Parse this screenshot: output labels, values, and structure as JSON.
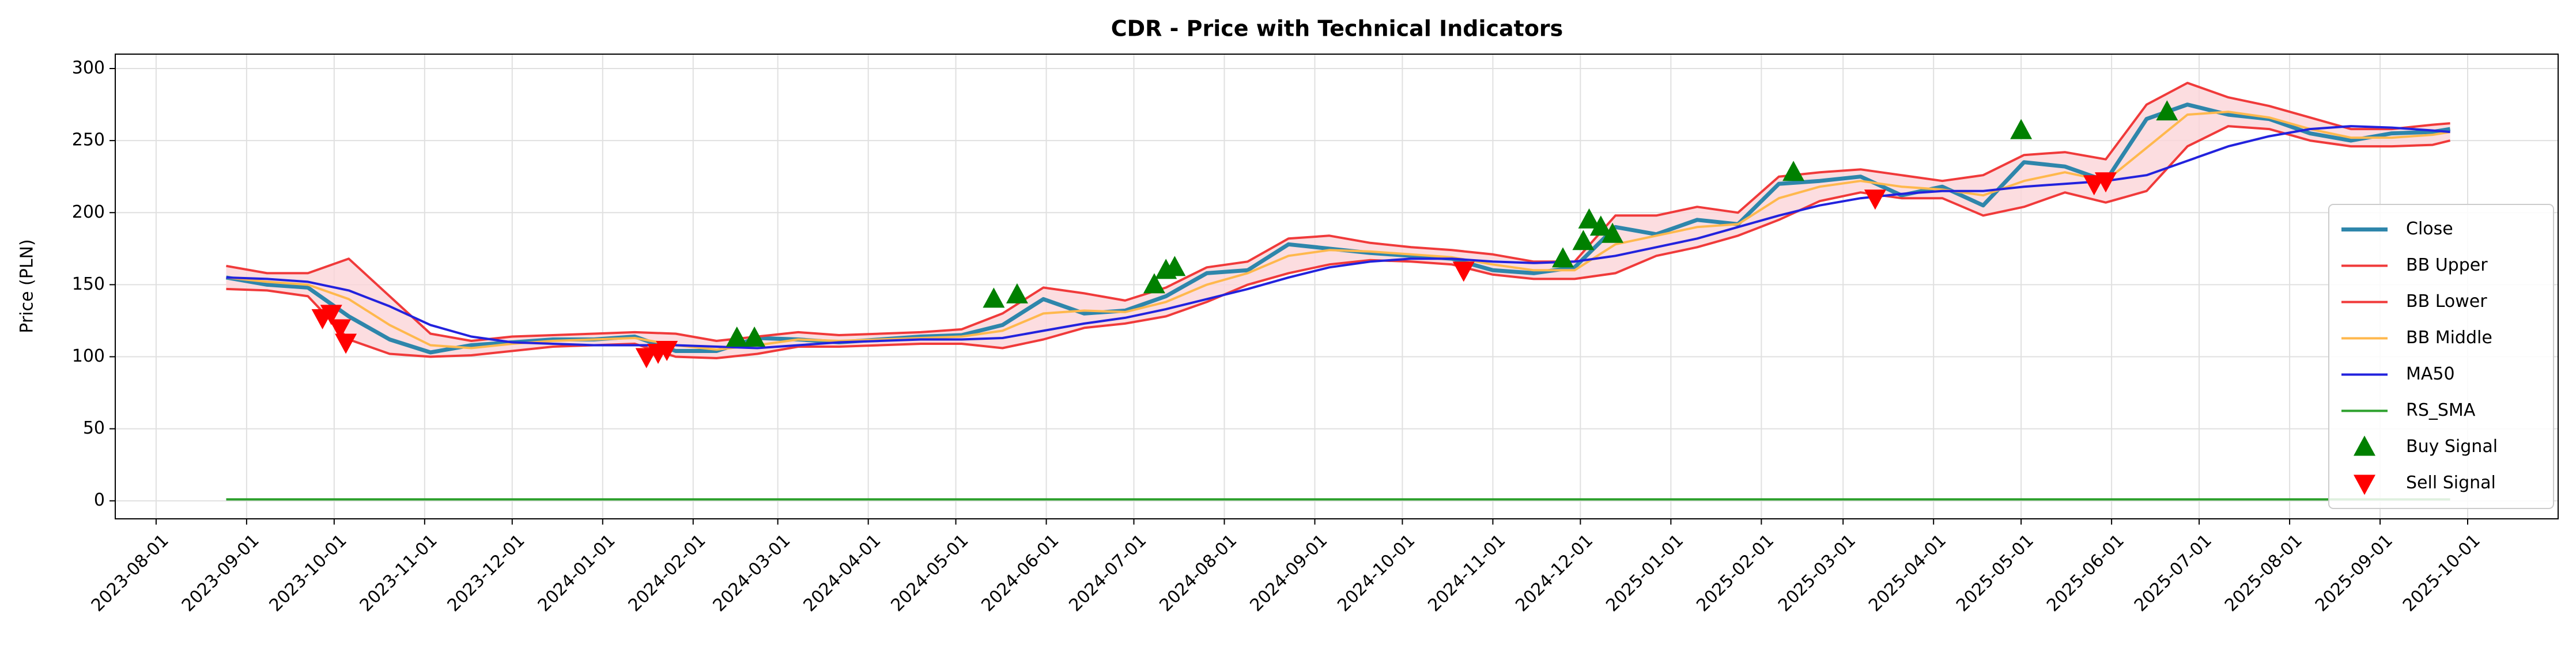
{
  "chart_data": {
    "type": "line",
    "title": "CDR - Price with Technical Indicators",
    "y_label": "Price (PLN)",
    "x": [
      "2023-08-25",
      "2023-09-08",
      "2023-09-22",
      "2023-10-06",
      "2023-10-20",
      "2023-11-03",
      "2023-11-17",
      "2023-12-01",
      "2023-12-15",
      "2023-12-29",
      "2024-01-12",
      "2024-01-26",
      "2024-02-09",
      "2024-02-23",
      "2024-03-08",
      "2024-03-22",
      "2024-04-05",
      "2024-04-19",
      "2024-05-03",
      "2024-05-17",
      "2024-05-31",
      "2024-06-14",
      "2024-06-28",
      "2024-07-12",
      "2024-07-26",
      "2024-08-09",
      "2024-08-23",
      "2024-09-06",
      "2024-09-20",
      "2024-10-04",
      "2024-10-18",
      "2024-11-01",
      "2024-11-15",
      "2024-11-29",
      "2024-12-13",
      "2024-12-27",
      "2025-01-10",
      "2025-01-24",
      "2025-02-07",
      "2025-02-21",
      "2025-03-07",
      "2025-03-21",
      "2025-04-04",
      "2025-04-18",
      "2025-05-02",
      "2025-05-16",
      "2025-05-30",
      "2025-06-13",
      "2025-06-27",
      "2025-07-11",
      "2025-07-25",
      "2025-08-08",
      "2025-08-22",
      "2025-09-05",
      "2025-09-19",
      "2025-09-25"
    ],
    "series": [
      {
        "name": "Close",
        "color": "#2e86ab",
        "style": "line",
        "width": 7,
        "values": [
          155,
          150,
          148,
          128,
          112,
          103,
          108,
          110,
          112,
          112,
          114,
          104,
          104,
          113,
          112,
          110,
          112,
          114,
          115,
          122,
          140,
          130,
          132,
          142,
          158,
          160,
          178,
          175,
          172,
          170,
          168,
          160,
          158,
          162,
          190,
          185,
          195,
          192,
          220,
          222,
          225,
          212,
          218,
          205,
          235,
          232,
          222,
          265,
          275,
          268,
          265,
          255,
          250,
          255,
          256,
          258
        ]
      },
      {
        "name": "BB Upper",
        "color": "#f03a3a",
        "style": "line",
        "width": 4,
        "values": [
          163,
          158,
          158,
          168,
          142,
          116,
          111,
          114,
          115,
          116,
          117,
          116,
          111,
          114,
          117,
          115,
          116,
          117,
          119,
          130,
          148,
          144,
          139,
          148,
          162,
          166,
          182,
          184,
          179,
          176,
          174,
          171,
          166,
          166,
          198,
          198,
          204,
          200,
          225,
          228,
          230,
          226,
          222,
          226,
          240,
          242,
          237,
          275,
          290,
          280,
          274,
          266,
          258,
          258,
          261,
          262
        ]
      },
      {
        "name": "BB Lower",
        "color": "#f03a3a",
        "style": "line",
        "width": 4,
        "values": [
          147,
          146,
          142,
          112,
          102,
          100,
          101,
          104,
          107,
          108,
          109,
          100,
          99,
          102,
          107,
          107,
          108,
          109,
          109,
          106,
          112,
          120,
          123,
          128,
          138,
          150,
          158,
          164,
          167,
          166,
          164,
          157,
          154,
          154,
          158,
          170,
          176,
          184,
          195,
          208,
          214,
          210,
          210,
          198,
          204,
          214,
          207,
          215,
          246,
          260,
          258,
          250,
          246,
          246,
          247,
          250
        ]
      },
      {
        "name": "BB Middle",
        "color": "#ffb84d",
        "style": "line",
        "width": 4,
        "values": [
          155,
          152,
          150,
          140,
          122,
          108,
          106,
          109,
          111,
          112,
          113,
          108,
          105,
          108,
          112,
          111,
          112,
          113,
          114,
          118,
          130,
          132,
          131,
          138,
          150,
          158,
          170,
          174,
          173,
          171,
          169,
          164,
          160,
          160,
          178,
          184,
          190,
          192,
          210,
          218,
          222,
          218,
          216,
          212,
          222,
          228,
          222,
          245,
          268,
          270,
          266,
          258,
          252,
          252,
          254,
          256
        ]
      },
      {
        "name": "MA50",
        "color": "#2222dd",
        "style": "line",
        "width": 4,
        "values": [
          155,
          154,
          152,
          146,
          135,
          122,
          114,
          110,
          109,
          108,
          108,
          108,
          107,
          106,
          108,
          110,
          111,
          112,
          112,
          113,
          118,
          123,
          127,
          133,
          140,
          147,
          155,
          162,
          166,
          168,
          168,
          166,
          165,
          166,
          170,
          176,
          182,
          190,
          198,
          205,
          210,
          213,
          215,
          215,
          218,
          220,
          222,
          226,
          236,
          246,
          253,
          258,
          260,
          259,
          257,
          256
        ]
      },
      {
        "name": "RS_SMA",
        "color": "#2ca02c",
        "style": "line",
        "width": 4,
        "values": [
          1,
          1,
          1,
          1,
          1,
          1,
          1,
          1,
          1,
          1,
          1,
          1,
          1,
          1,
          1,
          1,
          1,
          1,
          1,
          1,
          1,
          1,
          1,
          1,
          1,
          1,
          1,
          1,
          1,
          1,
          1,
          1,
          1,
          1,
          1,
          1,
          1,
          1,
          1,
          1,
          1,
          1,
          1,
          1,
          1,
          1,
          1,
          1,
          1,
          1,
          1,
          1,
          1,
          1,
          1,
          1
        ]
      },
      {
        "name": "Buy Signal",
        "color": "#008000",
        "style": "scatter",
        "marker": "up",
        "x": [
          "2024-02-16",
          "2024-02-22",
          "2024-05-14",
          "2024-05-22",
          "2024-07-08",
          "2024-07-12",
          "2024-07-15",
          "2024-11-25",
          "2024-12-02",
          "2024-12-04",
          "2024-12-08",
          "2024-12-12",
          "2025-02-12",
          "2025-05-01",
          "2025-06-20"
        ],
        "values": [
          113,
          113,
          140,
          143,
          150,
          160,
          162,
          168,
          180,
          195,
          190,
          185,
          228,
          257,
          270
        ]
      },
      {
        "name": "Sell Signal",
        "color": "#ff0000",
        "style": "scatter",
        "marker": "down",
        "x": [
          "2023-09-27",
          "2023-09-30",
          "2023-10-03",
          "2023-10-05",
          "2024-01-16",
          "2024-01-20",
          "2024-01-23",
          "2024-10-22",
          "2025-03-12",
          "2025-05-26",
          "2025-05-30"
        ],
        "values": [
          127,
          130,
          120,
          110,
          100,
          103,
          105,
          160,
          210,
          220,
          222
        ]
      }
    ],
    "band_fill_color": "#fbd4d8",
    "xlim": [
      "2023-07-18",
      "2025-11-01"
    ],
    "xticks": [
      "2023-08-01",
      "2023-09-01",
      "2023-10-01",
      "2023-11-01",
      "2023-12-01",
      "2024-01-01",
      "2024-02-01",
      "2024-03-01",
      "2024-04-01",
      "2024-05-01",
      "2024-06-01",
      "2024-07-01",
      "2024-08-01",
      "2024-09-01",
      "2024-10-01",
      "2024-11-01",
      "2024-12-01",
      "2025-01-01",
      "2025-02-01",
      "2025-03-01",
      "2025-04-01",
      "2025-05-01",
      "2025-06-01",
      "2025-07-01",
      "2025-08-01",
      "2025-09-01",
      "2025-10-01"
    ],
    "ylim": [
      -12.5,
      310
    ],
    "yticks": [
      0,
      50,
      100,
      150,
      200,
      250,
      300
    ],
    "grid": true,
    "legend": "lower right"
  }
}
